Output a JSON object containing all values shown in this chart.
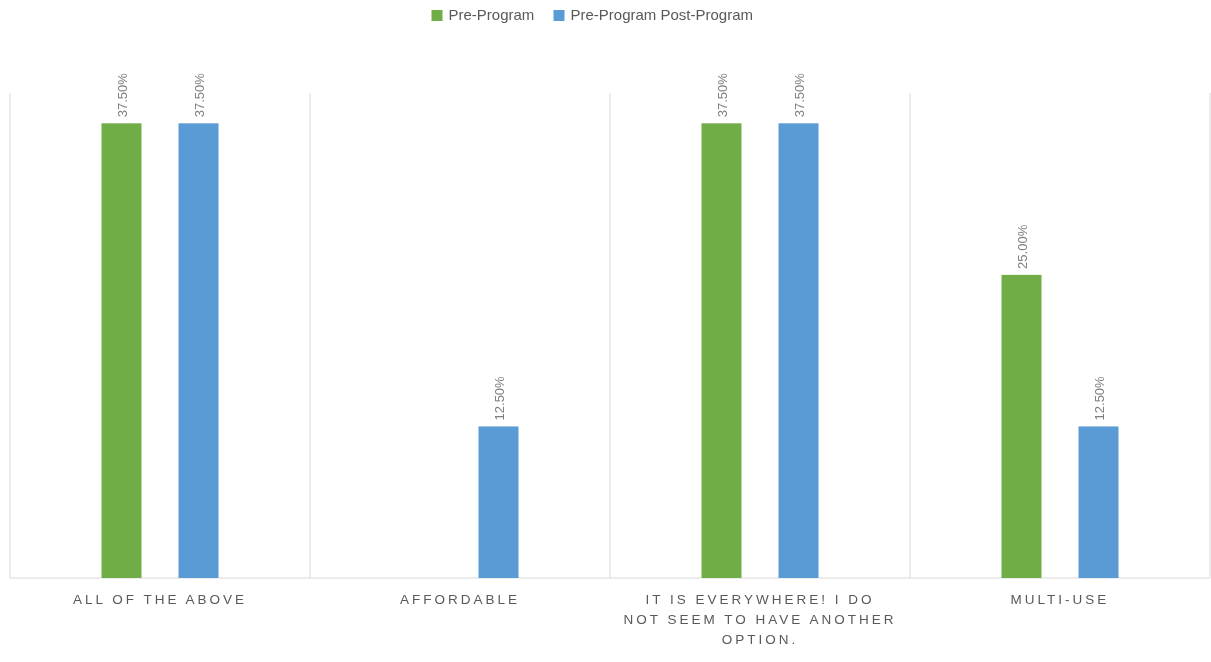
{
  "chart_data": {
    "type": "bar",
    "categories": [
      "ALL OF THE ABOVE",
      "AFFORDABLE",
      "IT IS EVERYWHERE! I DO NOT SEEM TO HAVE ANOTHER OPTION.",
      "MULTI-USE"
    ],
    "series": [
      {
        "name": "Pre-Program",
        "color": "#70ad47",
        "values": [
          37.5,
          null,
          37.5,
          25
        ],
        "value_labels": [
          "37.50%",
          null,
          "37.50%",
          "25.00%"
        ]
      },
      {
        "name": "Pre-Program Post-Program",
        "color": "#5b9bd5",
        "values": [
          37.5,
          12.5,
          37.5,
          12.5
        ],
        "value_labels": [
          "37.50%",
          "12.50%",
          "37.50%",
          "12.50%"
        ]
      }
    ],
    "ylim": [
      0,
      40
    ],
    "tick_labels": "x",
    "grid": "x",
    "legend": "top"
  }
}
